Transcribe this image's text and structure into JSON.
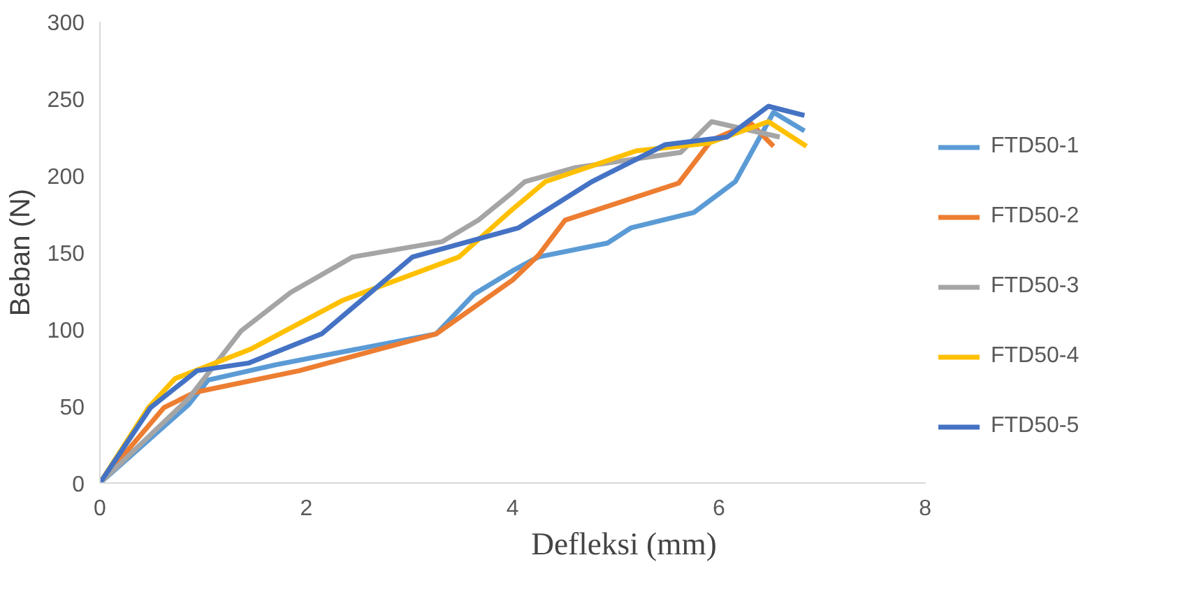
{
  "chart_data": {
    "type": "line",
    "xlabel": "Defleksi (mm)",
    "ylabel": "Beban (N)",
    "xlim": [
      0,
      8
    ],
    "ylim": [
      0,
      300
    ],
    "xticks": [
      0,
      2,
      4,
      6,
      8
    ],
    "yticks": [
      0,
      50,
      100,
      150,
      200,
      250,
      300
    ],
    "grid": false,
    "legend": "right",
    "marker": "none",
    "line_style": "solid",
    "series": [
      {
        "name": "FTD50-1",
        "color": "#5b9bd5",
        "x": [
          0,
          0.86,
          1.05,
          1.71,
          3.26,
          3.63,
          4.0,
          4.25,
          4.92,
          5.15,
          5.76,
          6.16,
          6.53,
          6.83
        ],
        "values": [
          0,
          51,
          67,
          77,
          97,
          123,
          138,
          147,
          156,
          166,
          176,
          196,
          241,
          229
        ]
      },
      {
        "name": "FTD50-2",
        "color": "#ed7d31",
        "x": [
          0,
          0.62,
          0.92,
          1.93,
          3.26,
          4.0,
          4.25,
          4.51,
          5.61,
          5.93,
          6.31,
          6.53
        ],
        "values": [
          0,
          49,
          59,
          73,
          97,
          132,
          148,
          171,
          195,
          223,
          234,
          219
        ]
      },
      {
        "name": "FTD50-3",
        "color": "#a5a5a5",
        "x": [
          0,
          0.86,
          1.37,
          1.85,
          2.45,
          3.32,
          3.67,
          4.0,
          4.12,
          4.6,
          5.63,
          5.93,
          6.59
        ],
        "values": [
          0,
          55,
          99,
          124,
          147,
          157,
          171,
          189,
          196,
          205,
          215,
          235,
          225
        ]
      },
      {
        "name": "FTD50-4",
        "color": "#ffc000",
        "x": [
          0,
          0.47,
          0.73,
          1.46,
          2.36,
          3.48,
          4.0,
          4.32,
          5.2,
          5.9,
          6.48,
          6.85
        ],
        "values": [
          0,
          49,
          68,
          87,
          119,
          147,
          178,
          196,
          216,
          221,
          235,
          219
        ]
      },
      {
        "name": "FTD50-5",
        "color": "#4472c4",
        "x": [
          0,
          0.49,
          0.94,
          1.44,
          2.15,
          3.03,
          4.06,
          4.77,
          5.48,
          6.08,
          6.48,
          6.83
        ],
        "values": [
          0,
          49,
          73,
          78,
          97,
          147,
          166,
          196,
          220,
          225,
          245,
          239
        ]
      }
    ]
  }
}
